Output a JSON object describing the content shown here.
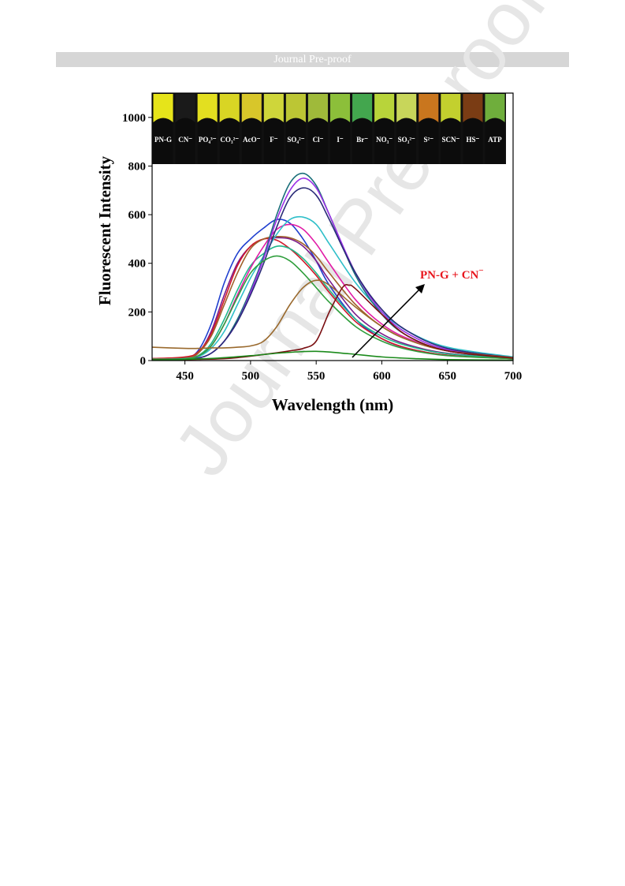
{
  "header": {
    "title": "Journal Pre-proof"
  },
  "watermark": {
    "text": "Journal Pre-proof"
  },
  "chart_data": {
    "type": "line",
    "xlabel": "Wavelength (nm)",
    "ylabel": "Fluorescent Intensity",
    "xlim": [
      425,
      700
    ],
    "ylim": [
      0,
      1100
    ],
    "xticks": [
      450,
      500,
      550,
      600,
      650,
      700
    ],
    "yticks": [
      0,
      200,
      400,
      600,
      800,
      1000
    ],
    "grid": false,
    "annotation": {
      "text": "PN-G + CN",
      "superscript": "−",
      "color": "#e8141c"
    },
    "vials": [
      {
        "label": "PN-G",
        "color": "#e6e41a"
      },
      {
        "label": "CN⁻",
        "color": "#1a1a1a"
      },
      {
        "label": "PO₄³⁻",
        "color": "#e3df20"
      },
      {
        "label": "CO₃²⁻",
        "color": "#d9d524"
      },
      {
        "label": "AcO⁻",
        "color": "#d8c62a"
      },
      {
        "label": "F⁻",
        "color": "#cfd63a"
      },
      {
        "label": "SO₄²⁻",
        "color": "#bcc634"
      },
      {
        "label": "Cl⁻",
        "color": "#9fba3a"
      },
      {
        "label": "I⁻",
        "color": "#8cbf3a"
      },
      {
        "label": "Br⁻",
        "color": "#43a64e"
      },
      {
        "label": "NO₃⁻",
        "color": "#b8d43a"
      },
      {
        "label": "SO₃²⁻",
        "color": "#c8d65a"
      },
      {
        "label": "S²⁻",
        "color": "#c9761e"
      },
      {
        "label": "SCN⁻",
        "color": "#c3d02e"
      },
      {
        "label": "HS⁻",
        "color": "#7a3c14"
      },
      {
        "label": "ATP",
        "color": "#6fae3c"
      }
    ],
    "series": [
      {
        "color": "#1f3fcf",
        "x": [
          425,
          450,
          460,
          470,
          480,
          490,
          500,
          510,
          520,
          530,
          540,
          550,
          560,
          580,
          600,
          620,
          650,
          700
        ],
        "values": [
          8,
          12,
          40,
          150,
          320,
          440,
          500,
          545,
          580,
          565,
          500,
          410,
          310,
          170,
          90,
          50,
          22,
          8
        ]
      },
      {
        "color": "#7a1b8a",
        "x": [
          425,
          450,
          460,
          470,
          480,
          490,
          500,
          510,
          520,
          530,
          540,
          550,
          560,
          580,
          600,
          620,
          650,
          700
        ],
        "values": [
          6,
          10,
          30,
          120,
          270,
          400,
          470,
          500,
          505,
          500,
          470,
          410,
          330,
          190,
          110,
          65,
          30,
          10
        ]
      },
      {
        "color": "#d1192a",
        "x": [
          425,
          450,
          460,
          470,
          480,
          490,
          500,
          510,
          520,
          530,
          540,
          550,
          560,
          580,
          600,
          620,
          650,
          700
        ],
        "values": [
          8,
          15,
          35,
          110,
          250,
          390,
          470,
          500,
          495,
          460,
          410,
          350,
          280,
          160,
          90,
          50,
          22,
          8
        ]
      },
      {
        "color": "#a0602a",
        "x": [
          425,
          450,
          460,
          470,
          480,
          490,
          500,
          510,
          520,
          530,
          540,
          550,
          560,
          580,
          600,
          620,
          650,
          700
        ],
        "values": [
          7,
          10,
          30,
          100,
          230,
          360,
          460,
          500,
          510,
          505,
          480,
          430,
          360,
          230,
          140,
          85,
          40,
          12
        ]
      },
      {
        "color": "#1fb88a",
        "x": [
          425,
          450,
          460,
          470,
          480,
          490,
          500,
          510,
          520,
          530,
          540,
          550,
          560,
          580,
          600,
          620,
          650,
          700
        ],
        "values": [
          5,
          8,
          20,
          70,
          170,
          290,
          390,
          440,
          470,
          460,
          420,
          360,
          290,
          170,
          100,
          60,
          28,
          10
        ]
      },
      {
        "color": "#e11aa6",
        "x": [
          425,
          450,
          460,
          470,
          480,
          490,
          500,
          510,
          520,
          530,
          540,
          550,
          560,
          580,
          600,
          620,
          650,
          700
        ],
        "values": [
          4,
          6,
          18,
          60,
          150,
          270,
          380,
          470,
          540,
          560,
          540,
          480,
          400,
          250,
          150,
          90,
          40,
          12
        ]
      },
      {
        "color": "#2fbfc9",
        "x": [
          425,
          450,
          460,
          470,
          480,
          490,
          500,
          510,
          520,
          530,
          540,
          550,
          560,
          580,
          600,
          620,
          650,
          700
        ],
        "values": [
          4,
          6,
          15,
          50,
          120,
          230,
          340,
          430,
          520,
          580,
          590,
          560,
          480,
          320,
          200,
          120,
          55,
          15
        ]
      },
      {
        "color": "#1a6f7a",
        "x": [
          425,
          450,
          460,
          470,
          480,
          490,
          500,
          510,
          520,
          530,
          540,
          550,
          560,
          580,
          600,
          620,
          650,
          700
        ],
        "values": [
          3,
          5,
          10,
          30,
          80,
          170,
          290,
          430,
          600,
          730,
          770,
          720,
          600,
          350,
          190,
          100,
          40,
          10
        ]
      },
      {
        "color": "#9b30e6",
        "x": [
          425,
          450,
          460,
          470,
          480,
          490,
          500,
          510,
          520,
          530,
          540,
          550,
          560,
          580,
          600,
          620,
          650,
          700
        ],
        "values": [
          3,
          5,
          10,
          30,
          80,
          160,
          280,
          420,
          580,
          700,
          750,
          710,
          600,
          360,
          200,
          110,
          45,
          12
        ]
      },
      {
        "color": "#2b2b78",
        "x": [
          425,
          450,
          460,
          470,
          480,
          490,
          500,
          510,
          520,
          530,
          540,
          550,
          560,
          580,
          600,
          620,
          650,
          700
        ],
        "values": [
          3,
          5,
          10,
          30,
          80,
          160,
          270,
          400,
          550,
          670,
          710,
          680,
          580,
          360,
          210,
          120,
          50,
          12
        ]
      },
      {
        "color": "#2f9e3c",
        "x": [
          425,
          450,
          460,
          470,
          480,
          490,
          500,
          510,
          520,
          530,
          540,
          550,
          560,
          580,
          600,
          620,
          650,
          700
        ],
        "values": [
          4,
          6,
          18,
          60,
          150,
          260,
          360,
          410,
          430,
          410,
          360,
          300,
          240,
          140,
          80,
          45,
          20,
          8
        ]
      },
      {
        "color": "#9a6a2e",
        "x": [
          425,
          450,
          460,
          470,
          480,
          490,
          500,
          510,
          520,
          530,
          540,
          550,
          560,
          580,
          600,
          620,
          650,
          700
        ],
        "values": [
          55,
          50,
          50,
          52,
          52,
          55,
          60,
          80,
          140,
          230,
          300,
          330,
          310,
          220,
          140,
          85,
          40,
          12
        ]
      },
      {
        "color": "#7a0f12",
        "x": [
          425,
          450,
          460,
          470,
          480,
          490,
          500,
          510,
          520,
          530,
          540,
          550,
          560,
          570,
          575,
          580,
          600,
          620,
          650,
          700
        ],
        "values": [
          4,
          4,
          5,
          6,
          8,
          12,
          18,
          25,
          32,
          40,
          50,
          80,
          200,
          300,
          310,
          295,
          190,
          100,
          40,
          10
        ]
      },
      {
        "color": "#1b8a1b",
        "x": [
          425,
          450,
          475,
          500,
          525,
          550,
          575,
          600,
          625,
          650,
          700
        ],
        "values": [
          3,
          5,
          10,
          20,
          32,
          38,
          28,
          15,
          8,
          4,
          2
        ]
      }
    ]
  }
}
